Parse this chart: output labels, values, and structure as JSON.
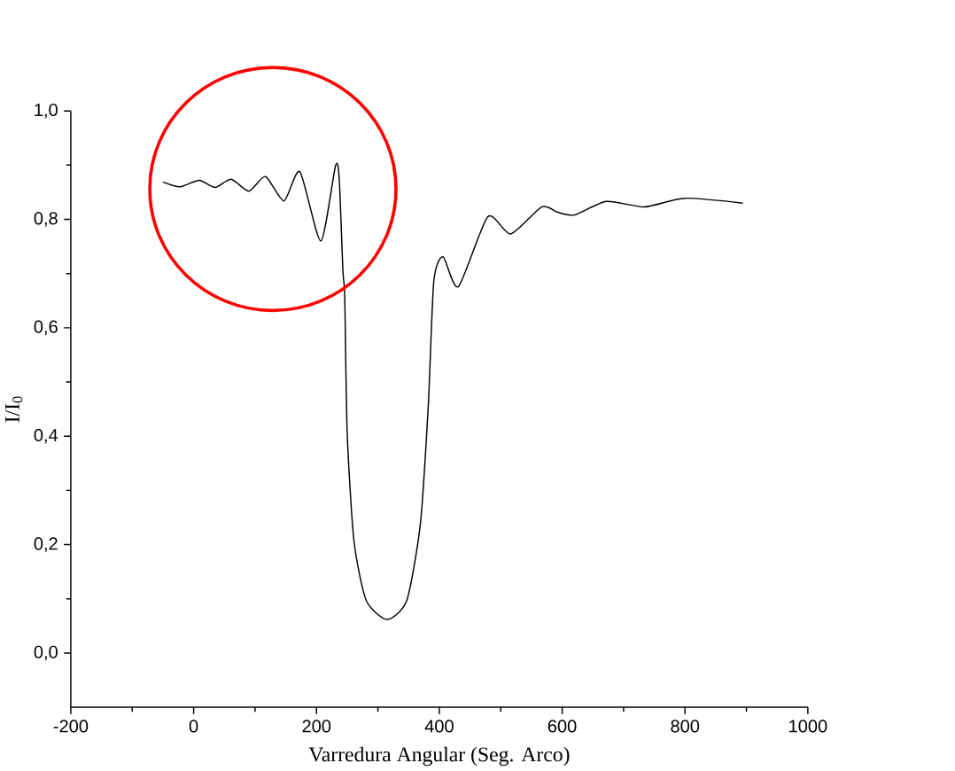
{
  "chart_data": {
    "type": "line",
    "xlabel": "Varredura Angular (Seg. Arco)",
    "ylabel": "I/I$_{0}$",
    "xlim": [
      -200,
      1000
    ],
    "xticks": [
      -200,
      0,
      200,
      400,
      600,
      800,
      1000
    ],
    "ylim": [
      -0.1,
      1.0
    ],
    "yticks": [
      {
        "value": 0,
        "label": "0,0"
      },
      {
        "value": 0.2,
        "label": "0,2"
      },
      {
        "value": 0.4,
        "label": "0,4"
      },
      {
        "value": 0.6,
        "label": "0,6"
      },
      {
        "value": 0.8,
        "label": "0,8"
      },
      {
        "value": 1.0,
        "label": "1,0"
      }
    ],
    "marker": "none",
    "line_style": "solid",
    "series": [
      {
        "color": "#000000",
        "x": [
          -50,
          -22,
          9,
          35,
          61,
          90,
          117,
          147,
          173,
          207,
          231,
          237,
          243,
          246,
          250,
          261,
          281,
          315,
          347,
          369,
          382,
          391,
          406,
          431,
          479,
          516,
          567,
          593,
          620,
          672,
          734,
          800,
          894
        ],
        "values": [
          0.869,
          0.86,
          0.872,
          0.859,
          0.874,
          0.852,
          0.879,
          0.834,
          0.888,
          0.76,
          0.899,
          0.875,
          0.706,
          0.656,
          0.406,
          0.207,
          0.097,
          0.062,
          0.097,
          0.237,
          0.456,
          0.686,
          0.731,
          0.676,
          0.805,
          0.773,
          0.823,
          0.813,
          0.808,
          0.833,
          0.823,
          0.839,
          0.83
        ]
      }
    ]
  }
}
